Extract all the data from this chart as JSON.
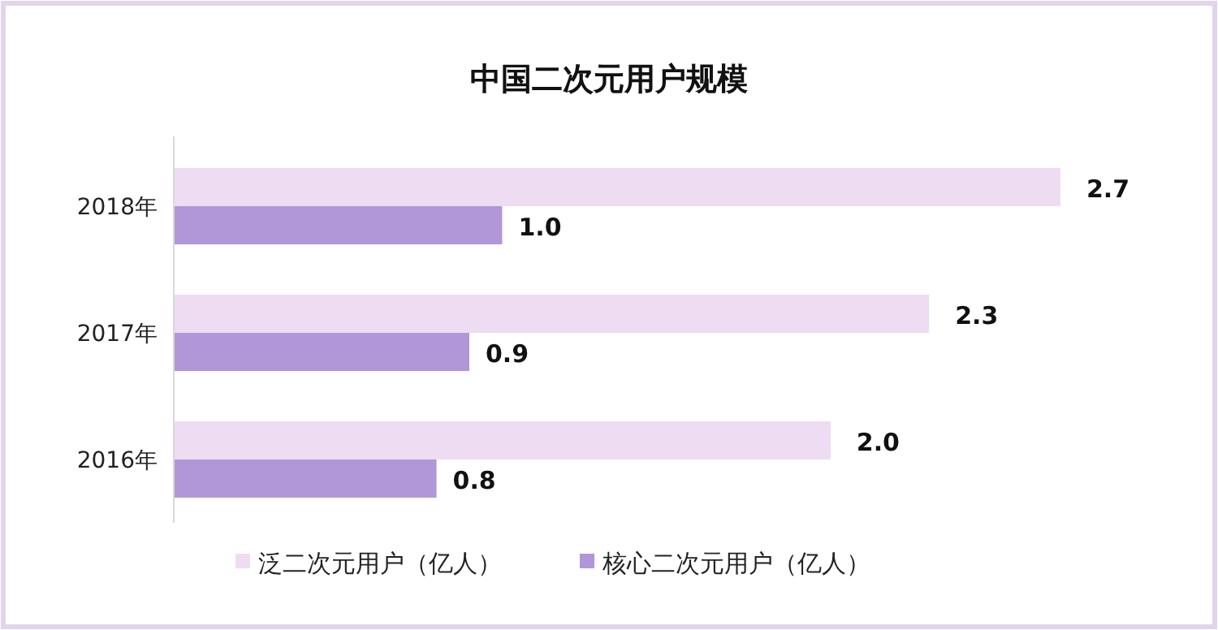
{
  "chart_data": {
    "type": "bar",
    "orientation": "horizontal",
    "title": "中国二次元用户规模",
    "categories": [
      "2018年",
      "2017年",
      "2016年"
    ],
    "series": [
      {
        "name": "泛二次元用户（亿人）",
        "color": "#eddcf2",
        "values": [
          2.7,
          2.3,
          2.0
        ],
        "value_labels": [
          "2.7",
          "2.3",
          "2.0"
        ]
      },
      {
        "name": "核心二次元用户（亿人）",
        "color": "#b196d8",
        "values": [
          1.0,
          0.9,
          0.8
        ],
        "value_labels": [
          "1.0",
          "0.9",
          "0.8"
        ]
      }
    ],
    "legend": "bottom"
  }
}
